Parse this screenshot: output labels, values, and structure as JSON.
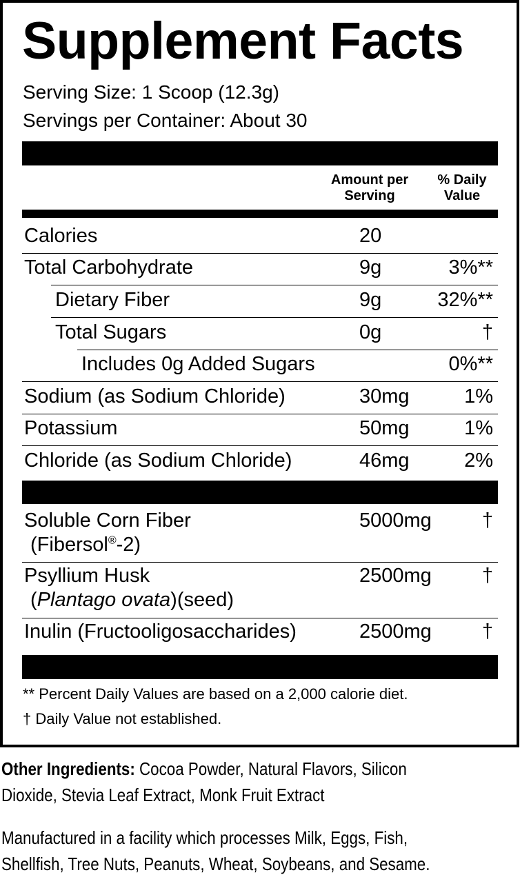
{
  "title": "Supplement Facts",
  "serving_size": "Serving Size: 1 Scoop (12.3g)",
  "servings_per_container": "Servings per Container: About 30",
  "headers": {
    "amount_1": "Amount per",
    "amount_2": "Serving",
    "dv_1": "% Daily",
    "dv_2": "Value"
  },
  "rows": [
    {
      "label": "Calories",
      "amount": "20",
      "dv": ""
    },
    {
      "label": "Total Carbohydrate",
      "amount": "9g",
      "dv": "3%**"
    },
    {
      "label": "Dietary Fiber",
      "amount": "9g",
      "dv": "32%**"
    },
    {
      "label": "Total Sugars",
      "amount": "0g",
      "dv": "†"
    },
    {
      "label": "Includes 0g Added Sugars",
      "amount": "",
      "dv": "0%**"
    },
    {
      "label": "Sodium (as Sodium Chloride)",
      "amount": "30mg",
      "dv": "1%"
    },
    {
      "label": "Potassium",
      "amount": "50mg",
      "dv": "1%"
    },
    {
      "label": "Chloride (as Sodium Chloride)",
      "amount": "46mg",
      "dv": "2%"
    }
  ],
  "blend": [
    {
      "label": "Soluble Corn Fiber",
      "sub_pre": "(Fibersol",
      "sub_reg": "®",
      "sub_post": "-2)",
      "amount": "5000mg",
      "dv": "†"
    },
    {
      "label": "Psyllium Husk",
      "sub_pre": "(",
      "sub_italic": "Plantago ovata",
      "sub_post": ")(seed)",
      "amount": "2500mg",
      "dv": "†"
    },
    {
      "label": "Inulin (Fructooligosaccharides)",
      "amount": "2500mg",
      "dv": "†"
    }
  ],
  "footnotes": [
    "** Percent Daily Values are based on a 2,000 calorie diet.",
    "† Daily Value not established."
  ],
  "other_ingredients": {
    "label": "Other Ingredients:",
    "text": " Cocoa Powder, Natural Flavors, Silicon",
    "text2": "Dioxide, Stevia Leaf Extract, Monk Fruit Extract"
  },
  "allergen": {
    "line1": "Manufactured in a facility which processes Milk, Eggs, Fish,",
    "line2": "Shellfish, Tree Nuts, Peanuts, Wheat, Soybeans, and Sesame."
  }
}
